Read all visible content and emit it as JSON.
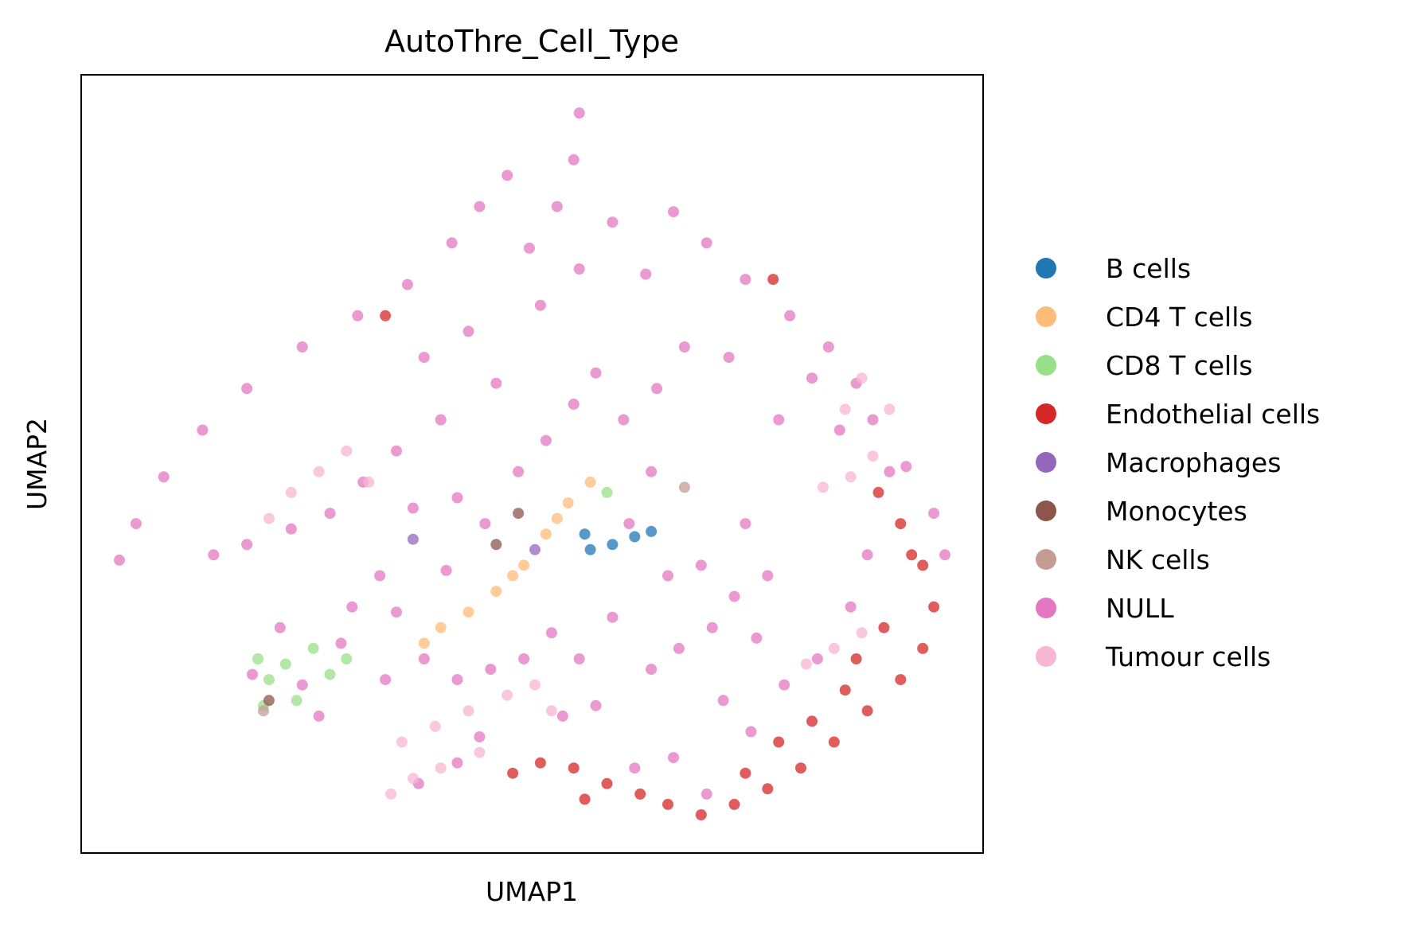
{
  "chart_data": {
    "type": "scatter",
    "title": "AutoThre_Cell_Type",
    "xlabel": "UMAP1",
    "ylabel": "UMAP2",
    "xticks": [],
    "yticks": [],
    "grid": false,
    "legend_position": "right",
    "point_alpha": 0.75,
    "series": [
      {
        "name": "B cells",
        "color": "#1f77b4",
        "points": [
          [
            5.0,
            5.1
          ],
          [
            5.4,
            5.2
          ],
          [
            5.8,
            5.35
          ],
          [
            6.1,
            5.45
          ],
          [
            4.9,
            5.4
          ]
        ]
      },
      {
        "name": "CD4 T cells",
        "color": "#ffbb78",
        "points": [
          [
            2.3,
            3.6
          ],
          [
            2.8,
            3.9
          ],
          [
            3.3,
            4.3
          ],
          [
            3.8,
            4.8
          ],
          [
            4.2,
            5.4
          ],
          [
            4.6,
            6.0
          ],
          [
            5.0,
            6.4
          ],
          [
            2.0,
            3.3
          ],
          [
            3.6,
            4.6
          ],
          [
            4.4,
            5.7
          ]
        ]
      },
      {
        "name": "CD8 T cells",
        "color": "#98df8a",
        "points": [
          [
            -1.0,
            3.0
          ],
          [
            -0.8,
            2.6
          ],
          [
            -0.5,
            2.9
          ],
          [
            0.0,
            3.2
          ],
          [
            0.3,
            2.7
          ],
          [
            -0.3,
            2.2
          ],
          [
            -0.9,
            2.1
          ],
          [
            0.6,
            3.0
          ],
          [
            5.3,
            6.2
          ]
        ]
      },
      {
        "name": "Endothelial cells",
        "color": "#d62728",
        "points": [
          [
            10.2,
            6.2
          ],
          [
            10.6,
            5.6
          ],
          [
            11.0,
            4.8
          ],
          [
            11.2,
            4.0
          ],
          [
            11.0,
            3.2
          ],
          [
            10.6,
            2.6
          ],
          [
            10.0,
            2.0
          ],
          [
            9.4,
            1.4
          ],
          [
            8.8,
            0.9
          ],
          [
            8.2,
            0.5
          ],
          [
            7.6,
            0.2
          ],
          [
            7.0,
            0.0
          ],
          [
            6.4,
            0.2
          ],
          [
            5.9,
            0.4
          ],
          [
            5.3,
            0.6
          ],
          [
            4.7,
            0.9
          ],
          [
            4.1,
            1.0
          ],
          [
            3.6,
            0.8
          ],
          [
            9.0,
            1.8
          ],
          [
            9.6,
            2.4
          ],
          [
            10.3,
            3.6
          ],
          [
            10.8,
            5.0
          ],
          [
            9.8,
            3.0
          ],
          [
            8.4,
            1.4
          ],
          [
            7.8,
            0.8
          ],
          [
            4.9,
            0.3
          ],
          [
            1.3,
            9.6
          ],
          [
            8.3,
            10.3
          ]
        ]
      },
      {
        "name": "Macrophages",
        "color": "#9467bd",
        "points": [
          [
            1.8,
            5.3
          ],
          [
            4.0,
            5.1
          ]
        ]
      },
      {
        "name": "Monocytes",
        "color": "#8c564b",
        "points": [
          [
            3.3,
            5.2
          ],
          [
            3.7,
            5.8
          ],
          [
            -0.8,
            2.2
          ]
        ]
      },
      {
        "name": "NK cells",
        "color": "#c49c94",
        "points": [
          [
            -0.9,
            2.0
          ],
          [
            6.7,
            6.3
          ]
        ]
      },
      {
        "name": "NULL",
        "color": "#e377c2",
        "points": [
          [
            4.8,
            13.5
          ],
          [
            4.7,
            12.6
          ],
          [
            4.4,
            11.7
          ],
          [
            3.9,
            10.9
          ],
          [
            3.5,
            12.3
          ],
          [
            3.0,
            11.7
          ],
          [
            2.5,
            11.0
          ],
          [
            1.7,
            10.2
          ],
          [
            0.8,
            9.6
          ],
          [
            -0.2,
            9.0
          ],
          [
            -1.2,
            8.2
          ],
          [
            -2.0,
            7.4
          ],
          [
            -2.7,
            6.5
          ],
          [
            -3.2,
            5.6
          ],
          [
            -3.5,
            4.9
          ],
          [
            4.1,
            9.8
          ],
          [
            4.8,
            10.5
          ],
          [
            5.4,
            11.4
          ],
          [
            6.0,
            10.4
          ],
          [
            6.5,
            11.6
          ],
          [
            7.1,
            11.0
          ],
          [
            7.8,
            10.3
          ],
          [
            8.6,
            9.6
          ],
          [
            9.3,
            9.0
          ],
          [
            9.8,
            8.3
          ],
          [
            10.1,
            7.6
          ],
          [
            10.7,
            6.7
          ],
          [
            11.2,
            5.8
          ],
          [
            11.4,
            5.0
          ],
          [
            2.0,
            8.8
          ],
          [
            2.8,
            9.3
          ],
          [
            3.3,
            8.3
          ],
          [
            2.3,
            7.6
          ],
          [
            1.5,
            7.0
          ],
          [
            0.9,
            6.4
          ],
          [
            0.3,
            5.8
          ],
          [
            -0.4,
            5.5
          ],
          [
            -1.2,
            5.2
          ],
          [
            -1.8,
            5.0
          ],
          [
            1.8,
            5.9
          ],
          [
            2.6,
            6.1
          ],
          [
            3.1,
            5.6
          ],
          [
            3.7,
            6.6
          ],
          [
            4.2,
            7.2
          ],
          [
            4.7,
            7.9
          ],
          [
            5.1,
            8.5
          ],
          [
            5.6,
            7.6
          ],
          [
            6.2,
            8.2
          ],
          [
            6.7,
            9.0
          ],
          [
            6.1,
            6.6
          ],
          [
            5.7,
            5.6
          ],
          [
            6.4,
            4.6
          ],
          [
            7.0,
            4.8
          ],
          [
            7.6,
            4.2
          ],
          [
            8.2,
            4.6
          ],
          [
            8.0,
            3.4
          ],
          [
            7.2,
            3.6
          ],
          [
            6.6,
            3.2
          ],
          [
            6.1,
            2.8
          ],
          [
            5.4,
            3.8
          ],
          [
            4.8,
            3.0
          ],
          [
            4.3,
            3.5
          ],
          [
            3.8,
            3.0
          ],
          [
            3.2,
            2.8
          ],
          [
            2.6,
            2.6
          ],
          [
            2.0,
            3.0
          ],
          [
            1.5,
            3.9
          ],
          [
            2.4,
            4.7
          ],
          [
            1.2,
            4.6
          ],
          [
            0.7,
            4.0
          ],
          [
            -0.6,
            3.6
          ],
          [
            -0.2,
            2.5
          ],
          [
            0.1,
            1.9
          ],
          [
            -1.1,
            2.7
          ],
          [
            0.5,
            3.3
          ],
          [
            1.3,
            2.6
          ],
          [
            7.4,
            2.2
          ],
          [
            7.9,
            1.6
          ],
          [
            8.5,
            2.5
          ],
          [
            9.1,
            3.0
          ],
          [
            9.7,
            4.0
          ],
          [
            10.0,
            5.0
          ],
          [
            10.4,
            6.6
          ],
          [
            9.5,
            7.4
          ],
          [
            9.0,
            8.4
          ],
          [
            8.4,
            7.6
          ],
          [
            7.5,
            8.8
          ],
          [
            7.8,
            5.6
          ],
          [
            4.5,
            1.9
          ],
          [
            5.1,
            2.1
          ],
          [
            3.0,
            1.5
          ],
          [
            2.6,
            1.0
          ],
          [
            1.9,
            0.6
          ],
          [
            6.5,
            1.1
          ],
          [
            5.8,
            0.9
          ],
          [
            7.1,
            0.4
          ]
        ]
      },
      {
        "name": "Tumour cells",
        "color": "#f7b6d2",
        "points": [
          [
            9.2,
            6.3
          ],
          [
            9.7,
            6.5
          ],
          [
            10.1,
            6.9
          ],
          [
            9.9,
            8.4
          ],
          [
            10.4,
            7.8
          ],
          [
            9.6,
            7.8
          ],
          [
            -0.4,
            6.2
          ],
          [
            0.1,
            6.6
          ],
          [
            0.6,
            7.0
          ],
          [
            1.0,
            6.4
          ],
          [
            -0.8,
            5.7
          ],
          [
            1.6,
            1.4
          ],
          [
            2.2,
            1.7
          ],
          [
            2.8,
            2.0
          ],
          [
            3.5,
            2.3
          ],
          [
            4.0,
            2.5
          ],
          [
            4.3,
            2.0
          ],
          [
            3.0,
            1.2
          ],
          [
            2.3,
            0.9
          ],
          [
            1.8,
            0.7
          ],
          [
            1.4,
            0.4
          ],
          [
            9.4,
            3.2
          ],
          [
            9.9,
            3.5
          ],
          [
            8.9,
            2.9
          ]
        ]
      }
    ]
  }
}
